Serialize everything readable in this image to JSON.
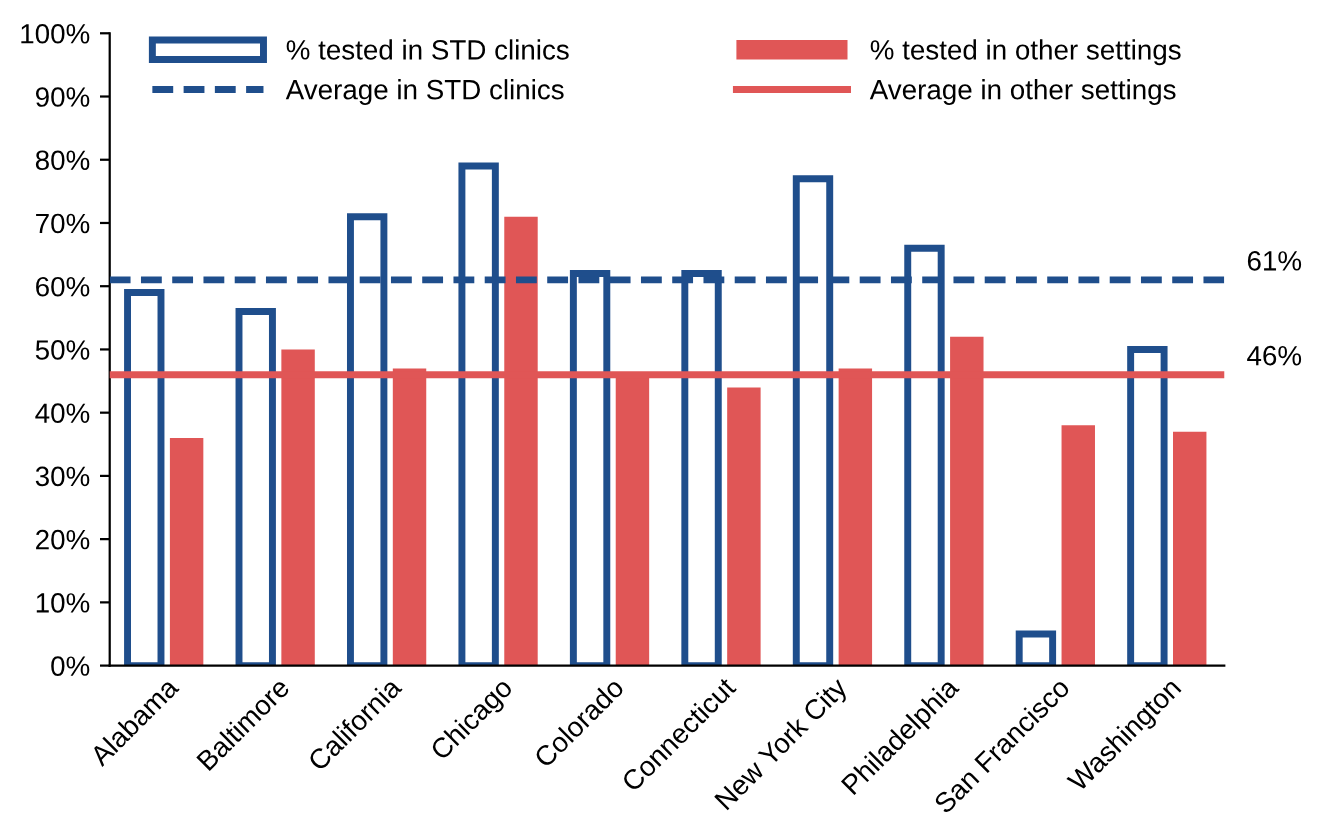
{
  "chart_data": {
    "type": "bar",
    "categories": [
      "Alabama",
      "Baltimore",
      "California",
      "Chicago",
      "Colorado",
      "Connecticut",
      "New York City",
      "Philadelphia",
      "San Francisco",
      "Washington"
    ],
    "series": [
      {
        "name": "% tested in STD clinics",
        "color": "#1f4e8c",
        "values": [
          59,
          56,
          71,
          79,
          62,
          62,
          77,
          66,
          5,
          50
        ]
      },
      {
        "name": "% tested in other settings",
        "color": "#e05656",
        "values": [
          36,
          50,
          47,
          71,
          46,
          44,
          47,
          52,
          38,
          37
        ]
      }
    ],
    "ylim": [
      0,
      100
    ],
    "yticks": [
      {
        "value": 0,
        "label": "0%"
      },
      {
        "value": 10,
        "label": "10%"
      },
      {
        "value": 20,
        "label": "20%"
      },
      {
        "value": 30,
        "label": "30%"
      },
      {
        "value": 40,
        "label": "40%"
      },
      {
        "value": 50,
        "label": "50%"
      },
      {
        "value": 60,
        "label": "60%"
      },
      {
        "value": 70,
        "label": "70%"
      },
      {
        "value": 80,
        "label": "80%"
      },
      {
        "value": 90,
        "label": "90%"
      },
      {
        "value": 100,
        "label": "100%"
      }
    ],
    "ref_lines": [
      {
        "axis": "y",
        "value": 61,
        "label": "Average in STD clinics",
        "color": "#1f4e8c",
        "line_style": "dashed"
      },
      {
        "axis": "y",
        "value": 46,
        "label": "Average in other settings",
        "color": "#e05656",
        "line_style": "solid"
      }
    ],
    "annotations": [
      "61%",
      "46%"
    ],
    "legend": "top",
    "grid": false
  }
}
